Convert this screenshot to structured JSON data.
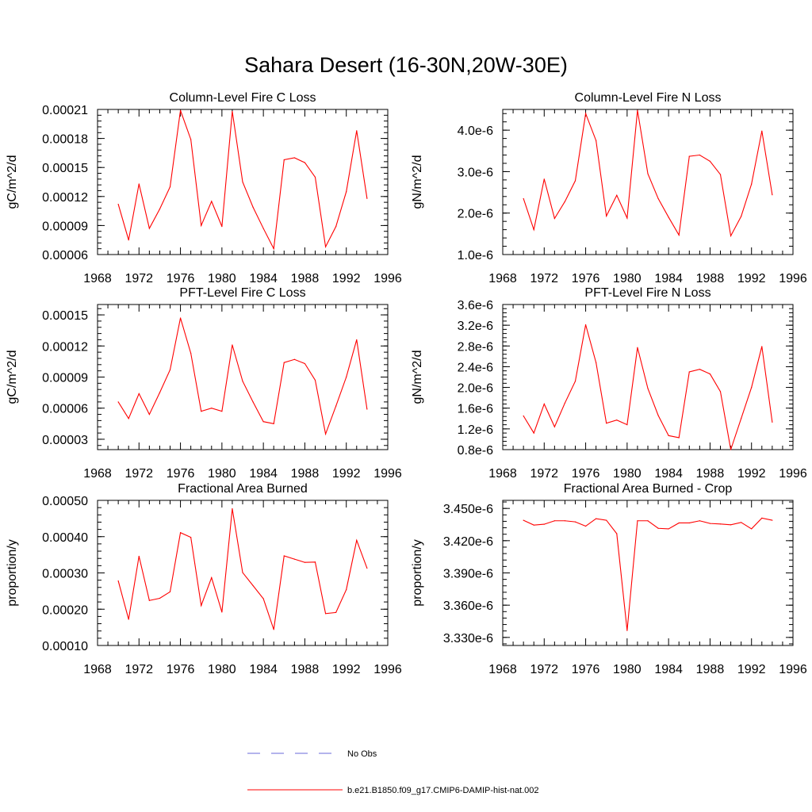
{
  "figure": {
    "title": "Sahara Desert (16-30N,20W-30E)",
    "legend": {
      "obs_label": "No Obs",
      "obs_color": "#6a6ad8",
      "model_label": "b.e21.B1850.f09_g17.CMIP6-DAMIP-hist-nat.002",
      "model_color": "#ff0000"
    }
  },
  "chart_data": [
    {
      "type": "line",
      "title": "Column-Level Fire C Loss",
      "ylabel": "gC/m^2/d",
      "xlim": [
        1968,
        1996
      ],
      "xticks": [
        "1968",
        "1972",
        "1976",
        "1980",
        "1984",
        "1988",
        "1992",
        "1996"
      ],
      "ylim": [
        6e-05,
        0.00021
      ],
      "yticks": [
        {
          "v": 6e-05,
          "label": "0.00006"
        },
        {
          "v": 9e-05,
          "label": "0.00009"
        },
        {
          "v": 0.00012,
          "label": "0.00012"
        },
        {
          "v": 0.00015,
          "label": "0.00015"
        },
        {
          "v": 0.00018,
          "label": "0.00018"
        },
        {
          "v": 0.00021,
          "label": "0.00021"
        }
      ],
      "x": [
        1970,
        1971,
        1972,
        1973,
        1974,
        1975,
        1976,
        1977,
        1978,
        1979,
        1980,
        1981,
        1982,
        1983,
        1984,
        1985,
        1986,
        1987,
        1988,
        1989,
        1990,
        1991,
        1992,
        1993,
        1994
      ],
      "series": [
        {
          "name": "b.e21.B1850.f09_g17.CMIP6-DAMIP-hist-nat.002",
          "color": "#ff0000",
          "values": [
            0.000112,
            7.5e-05,
            0.000133,
            8.7e-05,
            0.000107,
            0.00013,
            0.000209,
            0.000179,
            9e-05,
            0.000115,
            8.9e-05,
            0.000208,
            0.000135,
            0.000109,
            8.7e-05,
            6.6e-05,
            0.000158,
            0.00016,
            0.000155,
            0.00014,
            6.8e-05,
            8.9e-05,
            0.000125,
            0.000188,
            0.000118
          ]
        }
      ]
    },
    {
      "type": "line",
      "title": "Column-Level Fire N Loss",
      "ylabel": "gN/m^2/d",
      "xlim": [
        1968,
        1996
      ],
      "xticks": [
        "1968",
        "1972",
        "1976",
        "1980",
        "1984",
        "1988",
        "1992",
        "1996"
      ],
      "ylim": [
        1e-06,
        4.5e-06
      ],
      "yticks": [
        {
          "v": 1e-06,
          "label": "1.0e-6"
        },
        {
          "v": 2e-06,
          "label": "2.0e-6"
        },
        {
          "v": 3e-06,
          "label": "3.0e-6"
        },
        {
          "v": 4e-06,
          "label": "4.0e-6"
        }
      ],
      "x": [
        1970,
        1971,
        1972,
        1973,
        1974,
        1975,
        1976,
        1977,
        1978,
        1979,
        1980,
        1981,
        1982,
        1983,
        1984,
        1985,
        1986,
        1987,
        1988,
        1989,
        1990,
        1991,
        1992,
        1993,
        1994
      ],
      "series": [
        {
          "name": "b.e21.B1850.f09_g17.CMIP6-DAMIP-hist-nat.002",
          "color": "#ff0000",
          "values": [
            2.35e-06,
            1.6e-06,
            2.82e-06,
            1.87e-06,
            2.28e-06,
            2.78e-06,
            4.4e-06,
            3.75e-06,
            1.93e-06,
            2.43e-06,
            1.88e-06,
            4.48e-06,
            2.95e-06,
            2.35e-06,
            1.9e-06,
            1.47e-06,
            3.37e-06,
            3.4e-06,
            3.25e-06,
            2.93e-06,
            1.45e-06,
            1.92e-06,
            2.7e-06,
            3.98e-06,
            2.44e-06
          ]
        }
      ]
    },
    {
      "type": "line",
      "title": "PFT-Level Fire C Loss",
      "ylabel": "gC/m^2/d",
      "xlim": [
        1968,
        1996
      ],
      "xticks": [
        "1968",
        "1972",
        "1976",
        "1980",
        "1984",
        "1988",
        "1992",
        "1996"
      ],
      "ylim": [
        2e-05,
        0.00016
      ],
      "yticks": [
        {
          "v": 3e-05,
          "label": "0.00003"
        },
        {
          "v": 6e-05,
          "label": "0.00006"
        },
        {
          "v": 9e-05,
          "label": "0.00009"
        },
        {
          "v": 0.00012,
          "label": "0.00012"
        },
        {
          "v": 0.00015,
          "label": "0.00015"
        }
      ],
      "x": [
        1970,
        1971,
        1972,
        1973,
        1974,
        1975,
        1976,
        1977,
        1978,
        1979,
        1980,
        1981,
        1982,
        1983,
        1984,
        1985,
        1986,
        1987,
        1988,
        1989,
        1990,
        1991,
        1992,
        1993,
        1994
      ],
      "series": [
        {
          "name": "b.e21.B1850.f09_g17.CMIP6-DAMIP-hist-nat.002",
          "color": "#ff0000",
          "values": [
            6.6e-05,
            5e-05,
            7.4e-05,
            5.4e-05,
            7.5e-05,
            9.7e-05,
            0.000147,
            0.000113,
            5.7e-05,
            6e-05,
            5.7e-05,
            0.000121,
            8.6e-05,
            6.6e-05,
            4.7e-05,
            4.5e-05,
            0.000104,
            0.000107,
            0.000103,
            8.7e-05,
            3.5e-05,
            6.2e-05,
            9e-05,
            0.000126,
            5.9e-05
          ]
        }
      ]
    },
    {
      "type": "line",
      "title": "PFT-Level Fire N Loss",
      "ylabel": "gN/m^2/d",
      "xlim": [
        1968,
        1996
      ],
      "xticks": [
        "1968",
        "1972",
        "1976",
        "1980",
        "1984",
        "1988",
        "1992",
        "1996"
      ],
      "ylim": [
        8e-07,
        3.6e-06
      ],
      "yticks": [
        {
          "v": 8e-07,
          "label": "0.8e-6"
        },
        {
          "v": 1.2e-06,
          "label": "1.2e-6"
        },
        {
          "v": 1.6e-06,
          "label": "1.6e-6"
        },
        {
          "v": 2e-06,
          "label": "2.0e-6"
        },
        {
          "v": 2.4e-06,
          "label": "2.4e-6"
        },
        {
          "v": 2.8e-06,
          "label": "2.8e-6"
        },
        {
          "v": 3.2e-06,
          "label": "3.2e-6"
        },
        {
          "v": 3.6e-06,
          "label": "3.6e-6"
        }
      ],
      "x": [
        1970,
        1971,
        1972,
        1973,
        1974,
        1975,
        1976,
        1977,
        1978,
        1979,
        1980,
        1981,
        1982,
        1983,
        1984,
        1985,
        1986,
        1987,
        1988,
        1989,
        1990,
        1991,
        1992,
        1993,
        1994
      ],
      "series": [
        {
          "name": "b.e21.B1850.f09_g17.CMIP6-DAMIP-hist-nat.002",
          "color": "#ff0000",
          "values": [
            1.45e-06,
            1.12e-06,
            1.68e-06,
            1.24e-06,
            1.7e-06,
            2.12e-06,
            3.21e-06,
            2.48e-06,
            1.31e-06,
            1.37e-06,
            1.28e-06,
            2.77e-06,
            1.98e-06,
            1.46e-06,
            1.07e-06,
            1.03e-06,
            2.3e-06,
            2.35e-06,
            2.26e-06,
            1.92e-06,
            8e-07,
            1.4e-06,
            2e-06,
            2.79e-06,
            1.33e-06
          ]
        }
      ]
    },
    {
      "type": "line",
      "title": "Fractional Area Burned",
      "ylabel": "proportion/y",
      "xlim": [
        1968,
        1996
      ],
      "xticks": [
        "1968",
        "1972",
        "1976",
        "1980",
        "1984",
        "1988",
        "1992",
        "1996"
      ],
      "ylim": [
        0.0001,
        0.0005
      ],
      "yticks": [
        {
          "v": 0.0001,
          "label": "0.00010"
        },
        {
          "v": 0.0002,
          "label": "0.00020"
        },
        {
          "v": 0.0003,
          "label": "0.00030"
        },
        {
          "v": 0.0004,
          "label": "0.00040"
        },
        {
          "v": 0.0005,
          "label": "0.00050"
        }
      ],
      "x": [
        1970,
        1971,
        1972,
        1973,
        1974,
        1975,
        1976,
        1977,
        1978,
        1979,
        1980,
        1981,
        1982,
        1983,
        1984,
        1985,
        1986,
        1987,
        1988,
        1989,
        1990,
        1991,
        1992,
        1993,
        1994
      ],
      "series": [
        {
          "name": "b.e21.B1850.f09_g17.CMIP6-DAMIP-hist-nat.002",
          "color": "#ff0000",
          "values": [
            0.000278,
            0.000172,
            0.000346,
            0.000224,
            0.00023,
            0.000248,
            0.000411,
            0.000398,
            0.00021,
            0.000287,
            0.000192,
            0.000477,
            0.000301,
            0.000265,
            0.000229,
            0.000144,
            0.000347,
            0.000338,
            0.000329,
            0.00033,
            0.000188,
            0.000191,
            0.000254,
            0.00039,
            0.000313
          ]
        }
      ]
    },
    {
      "type": "line",
      "title": "Fractional Area Burned - Crop",
      "ylabel": "proportion/y",
      "xlim": [
        1968,
        1996
      ],
      "xticks": [
        "1968",
        "1972",
        "1976",
        "1980",
        "1984",
        "1988",
        "1992",
        "1996"
      ],
      "ylim": [
        3.3225e-06,
        3.4575e-06
      ],
      "yticks": [
        {
          "v": 3.33e-06,
          "label": "3.330e-6"
        },
        {
          "v": 3.36e-06,
          "label": "3.360e-6"
        },
        {
          "v": 3.39e-06,
          "label": "3.390e-6"
        },
        {
          "v": 3.42e-06,
          "label": "3.420e-6"
        },
        {
          "v": 3.45e-06,
          "label": "3.450e-6"
        }
      ],
      "x": [
        1970,
        1971,
        1972,
        1973,
        1974,
        1975,
        1976,
        1977,
        1978,
        1979,
        1980,
        1981,
        1982,
        1983,
        1984,
        1985,
        1986,
        1987,
        1988,
        1989,
        1990,
        1991,
        1992,
        1993,
        1994
      ],
      "series": [
        {
          "name": "b.e21.B1850.f09_g17.CMIP6-DAMIP-hist-nat.002",
          "color": "#ff0000",
          "values": [
            3.439e-06,
            3.4345e-06,
            3.4353e-06,
            3.4385e-06,
            3.4385e-06,
            3.4375e-06,
            3.4335e-06,
            3.4405e-06,
            3.439e-06,
            3.4265e-06,
            3.3364e-06,
            3.4385e-06,
            3.4385e-06,
            3.4315e-06,
            3.431e-06,
            3.4365e-06,
            3.4365e-06,
            3.4385e-06,
            3.436e-06,
            3.4355e-06,
            3.4348e-06,
            3.437e-06,
            3.431e-06,
            3.441e-06,
            3.439e-06
          ]
        }
      ]
    }
  ]
}
